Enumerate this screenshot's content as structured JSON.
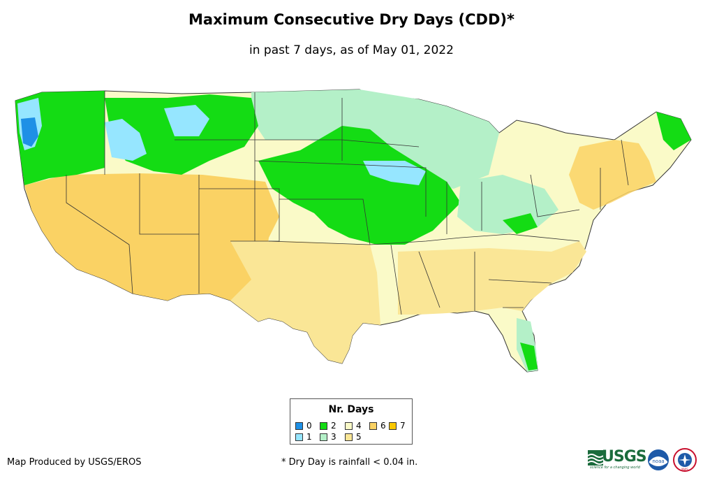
{
  "title": "Maximum Consecutive Dry Days (CDD)*",
  "subtitle": "in past 7 days, as of May 01, 2022",
  "legend": {
    "title": "Nr. Days",
    "items": [
      {
        "label": "0",
        "color": "#1e90e6"
      },
      {
        "label": "1",
        "color": "#96e6ff"
      },
      {
        "label": "2",
        "color": "#14dc14"
      },
      {
        "label": "3",
        "color": "#b4f0c8"
      },
      {
        "label": "4",
        "color": "#fafac8"
      },
      {
        "label": "5",
        "color": "#fae696"
      },
      {
        "label": "6",
        "color": "#fad264"
      },
      {
        "label": "7",
        "color": "#fac800"
      }
    ]
  },
  "credit": "Map Produced by USGS/EROS",
  "footnote": "* Dry Day is rainfall < 0.04 in.",
  "logos": {
    "usgs": "USGS",
    "usgs_tagline": "science for a changing world",
    "noaa": "noaa",
    "nws": "NWS"
  }
}
